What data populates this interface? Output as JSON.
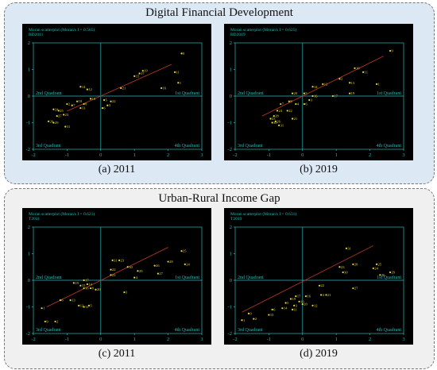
{
  "sections": [
    {
      "title": "Digital Financial Development"
    },
    {
      "title": "Urban-Rural Income Gap"
    }
  ],
  "colors": {
    "background": "#000000",
    "text": "#2fb8b8",
    "point": "#e7d93a",
    "fit": "#c0392b"
  },
  "chart_data": [
    {
      "type": "scatter",
      "caption": "(a) 2011",
      "title": "Moran scatterplot (Moran's I = 0.565)",
      "variable": "BD2011",
      "xlim": [
        -2,
        3
      ],
      "ylim": [
        -2,
        2
      ],
      "xticks": [
        -2,
        -1,
        0,
        1,
        2,
        3
      ],
      "yticks": [
        -2,
        -1,
        0,
        1,
        2
      ],
      "quadrants": [
        "1st Quadrant",
        "2nd Quadrant",
        "3rd Quadrant",
        "4th Quadrant"
      ],
      "fit": {
        "x1": -1.0,
        "y1": -0.565,
        "x2": 2.1,
        "y2": 1.19
      },
      "points": [
        {
          "x": 2.4,
          "y": 1.6,
          "label": "9"
        },
        {
          "x": 2.2,
          "y": 0.9,
          "label": "11"
        },
        {
          "x": 2.3,
          "y": 0.5,
          "label": "1"
        },
        {
          "x": 1.25,
          "y": 0.95,
          "label": "19"
        },
        {
          "x": 1.15,
          "y": 0.85,
          "label": "17"
        },
        {
          "x": 1.0,
          "y": 0.75,
          "label": "15"
        },
        {
          "x": 1.8,
          "y": 0.3,
          "label": "16"
        },
        {
          "x": 0.6,
          "y": 0.3,
          "label": "21"
        },
        {
          "x": -0.6,
          "y": 0.35,
          "label": "14"
        },
        {
          "x": -0.4,
          "y": 0.25,
          "label": "12"
        },
        {
          "x": 0.3,
          "y": -0.2,
          "label": "22"
        },
        {
          "x": 0.1,
          "y": -0.15,
          "label": "5"
        },
        {
          "x": 0.2,
          "y": -0.35,
          "label": "3"
        },
        {
          "x": 0.05,
          "y": -0.45,
          "label": "6"
        },
        {
          "x": -0.3,
          "y": -0.1,
          "label": "18"
        },
        {
          "x": -0.7,
          "y": -0.2,
          "label": "10"
        },
        {
          "x": -0.5,
          "y": -0.3,
          "label": "8"
        },
        {
          "x": -1.0,
          "y": -0.3,
          "label": "2"
        },
        {
          "x": -0.85,
          "y": -0.35,
          "label": "7"
        },
        {
          "x": -0.6,
          "y": -0.45,
          "label": "13"
        },
        {
          "x": -1.4,
          "y": -0.5,
          "label": "24"
        },
        {
          "x": -1.3,
          "y": -0.75,
          "label": "27"
        },
        {
          "x": -1.1,
          "y": -0.7,
          "label": "23"
        },
        {
          "x": -1.55,
          "y": -0.95,
          "label": "26"
        },
        {
          "x": -1.4,
          "y": -1.0,
          "label": "29"
        },
        {
          "x": -1.05,
          "y": -1.15,
          "label": "31"
        },
        {
          "x": -1.25,
          "y": -0.55,
          "label": "25"
        }
      ]
    },
    {
      "type": "scatter",
      "caption": "(b) 2019",
      "title": "Moran scatterplot (Moran's I = 0.625)",
      "variable": "BD2019",
      "xlim": [
        -2,
        3
      ],
      "ylim": [
        -2,
        2
      ],
      "xticks": [
        -2,
        -1,
        0,
        1,
        2,
        3
      ],
      "yticks": [
        -2,
        -1,
        0,
        1,
        2
      ],
      "quadrants": [
        "1st Quadrant",
        "2nd Quadrant",
        "3rd Quadrant",
        "4th Quadrant"
      ],
      "fit": {
        "x1": -1.2,
        "y1": -0.75,
        "x2": 2.4,
        "y2": 1.5
      },
      "points": [
        {
          "x": 2.6,
          "y": 1.7,
          "label": "9"
        },
        {
          "x": 1.55,
          "y": 1.05,
          "label": "10"
        },
        {
          "x": 1.8,
          "y": 0.9,
          "label": "11"
        },
        {
          "x": 1.1,
          "y": 0.65,
          "label": "2"
        },
        {
          "x": 1.4,
          "y": 0.5,
          "label": "13"
        },
        {
          "x": 2.2,
          "y": 0.45,
          "label": "1"
        },
        {
          "x": 0.6,
          "y": 0.45,
          "label": "12"
        },
        {
          "x": 0.3,
          "y": 0.35,
          "label": "14"
        },
        {
          "x": 1.4,
          "y": 0.1,
          "label": "19"
        },
        {
          "x": 0.9,
          "y": 0.0,
          "label": "17"
        },
        {
          "x": 0.3,
          "y": 0.0,
          "label": "16"
        },
        {
          "x": 0.05,
          "y": 0.1,
          "label": "5"
        },
        {
          "x": -0.3,
          "y": 0.1,
          "label": "20"
        },
        {
          "x": 0.2,
          "y": -0.15,
          "label": "3"
        },
        {
          "x": -0.4,
          "y": -0.2,
          "label": "8"
        },
        {
          "x": -0.2,
          "y": -0.3,
          "label": "4"
        },
        {
          "x": -0.65,
          "y": -0.3,
          "label": "7"
        },
        {
          "x": 0.05,
          "y": -0.3,
          "label": "6"
        },
        {
          "x": -0.45,
          "y": -0.55,
          "label": "22"
        },
        {
          "x": -0.75,
          "y": -0.55,
          "label": "24"
        },
        {
          "x": -0.85,
          "y": -0.75,
          "label": "28"
        },
        {
          "x": -0.95,
          "y": -0.85,
          "label": "23"
        },
        {
          "x": -0.8,
          "y": -0.95,
          "label": "26"
        },
        {
          "x": -0.9,
          "y": -1.0,
          "label": "30"
        },
        {
          "x": -0.7,
          "y": -1.1,
          "label": "31"
        },
        {
          "x": -0.3,
          "y": -0.85,
          "label": "21"
        }
      ]
    },
    {
      "type": "scatter",
      "caption": "(c) 2011",
      "title": "Moran scatterplot (Moran's I = 0.621)",
      "variable": "T2011",
      "xlim": [
        -2,
        3
      ],
      "ylim": [
        -2,
        2
      ],
      "xticks": [
        -2,
        -1,
        0,
        1,
        2,
        3
      ],
      "yticks": [
        -2,
        -1,
        0,
        1,
        2
      ],
      "quadrants": [
        "1st Quadrant",
        "2nd Quadrant",
        "3rd Quadrant",
        "4th Quadrant"
      ],
      "fit": {
        "x1": -1.6,
        "y1": -1.0,
        "x2": 2.0,
        "y2": 1.24
      },
      "points": [
        {
          "x": 2.4,
          "y": 1.1,
          "label": "25"
        },
        {
          "x": 2.5,
          "y": 0.6,
          "label": "24"
        },
        {
          "x": 2.0,
          "y": 0.7,
          "label": "28"
        },
        {
          "x": 1.6,
          "y": 0.55,
          "label": "26"
        },
        {
          "x": 1.7,
          "y": 0.25,
          "label": "27"
        },
        {
          "x": 0.35,
          "y": 0.75,
          "label": "31"
        },
        {
          "x": 0.55,
          "y": 0.75,
          "label": "23"
        },
        {
          "x": 0.8,
          "y": 0.5,
          "label": "30"
        },
        {
          "x": 1.1,
          "y": 0.35,
          "label": "29"
        },
        {
          "x": 0.3,
          "y": 0.4,
          "label": "22"
        },
        {
          "x": 0.3,
          "y": 0.2,
          "label": "21"
        },
        {
          "x": 1.0,
          "y": 0.1,
          "label": "4"
        },
        {
          "x": 0.7,
          "y": -0.45,
          "label": "3"
        },
        {
          "x": -0.5,
          "y": 0.0,
          "label": "17"
        },
        {
          "x": -0.8,
          "y": -0.1,
          "label": "19"
        },
        {
          "x": -0.4,
          "y": -0.15,
          "label": "14"
        },
        {
          "x": -0.3,
          "y": -0.3,
          "label": "8"
        },
        {
          "x": -0.5,
          "y": -0.3,
          "label": "16"
        },
        {
          "x": -0.6,
          "y": -0.2,
          "label": "15"
        },
        {
          "x": -0.15,
          "y": -0.35,
          "label": "20"
        },
        {
          "x": -0.9,
          "y": -0.75,
          "label": "13"
        },
        {
          "x": -0.65,
          "y": -0.95,
          "label": "12"
        },
        {
          "x": -0.5,
          "y": -1.0,
          "label": "11"
        },
        {
          "x": -0.35,
          "y": -0.95,
          "label": "5"
        },
        {
          "x": -1.2,
          "y": -0.75,
          "label": "6"
        },
        {
          "x": -1.75,
          "y": -1.05,
          "label": "1"
        },
        {
          "x": -1.65,
          "y": -1.55,
          "label": "9"
        },
        {
          "x": -1.35,
          "y": -1.55,
          "label": "2"
        }
      ]
    },
    {
      "type": "scatter",
      "caption": "(d) 2019",
      "title": "Moran scatterplot (Moran's I = 0.631)",
      "variable": "T2019",
      "xlim": [
        -2,
        3
      ],
      "ylim": [
        -2,
        2
      ],
      "xticks": [
        -2,
        -1,
        0,
        1,
        2,
        3
      ],
      "yticks": [
        -2,
        -1,
        0,
        1,
        2
      ],
      "quadrants": [
        "1st Quadrant",
        "2nd Quadrant",
        "3rd Quadrant",
        "4th Quadrant"
      ],
      "fit": {
        "x1": -1.8,
        "y1": -1.2,
        "x2": 2.1,
        "y2": 1.3
      },
      "points": [
        {
          "x": 1.3,
          "y": 1.2,
          "label": "31"
        },
        {
          "x": 2.2,
          "y": 0.6,
          "label": "25"
        },
        {
          "x": 1.5,
          "y": 0.6,
          "label": "28"
        },
        {
          "x": 2.1,
          "y": 0.45,
          "label": "24"
        },
        {
          "x": 2.6,
          "y": 0.3,
          "label": "29"
        },
        {
          "x": 2.3,
          "y": 0.2,
          "label": "26"
        },
        {
          "x": 1.1,
          "y": 0.5,
          "label": "23"
        },
        {
          "x": 1.2,
          "y": 0.3,
          "label": "30"
        },
        {
          "x": 1.5,
          "y": -0.3,
          "label": "27"
        },
        {
          "x": 0.5,
          "y": -0.2,
          "label": "22"
        },
        {
          "x": 0.55,
          "y": -0.55,
          "label": "4"
        },
        {
          "x": 0.7,
          "y": -0.55,
          "label": "21"
        },
        {
          "x": -0.2,
          "y": -0.6,
          "label": "17"
        },
        {
          "x": 0.1,
          "y": -0.6,
          "label": "16"
        },
        {
          "x": -0.35,
          "y": -0.7,
          "label": "19"
        },
        {
          "x": -0.1,
          "y": -0.8,
          "label": "10"
        },
        {
          "x": -0.5,
          "y": -0.85,
          "label": "5"
        },
        {
          "x": -0.25,
          "y": -0.95,
          "label": "3"
        },
        {
          "x": 0.0,
          "y": -0.9,
          "label": "20"
        },
        {
          "x": 0.3,
          "y": -0.95,
          "label": "12"
        },
        {
          "x": -0.6,
          "y": -1.05,
          "label": "14"
        },
        {
          "x": -0.3,
          "y": -1.1,
          "label": "11"
        },
        {
          "x": -0.9,
          "y": -1.1,
          "label": "6"
        },
        {
          "x": -1.0,
          "y": -1.3,
          "label": "13"
        },
        {
          "x": -1.6,
          "y": -1.25,
          "label": "9"
        },
        {
          "x": -1.45,
          "y": -1.45,
          "label": "2"
        },
        {
          "x": -1.8,
          "y": -1.5,
          "label": "1"
        }
      ]
    }
  ]
}
